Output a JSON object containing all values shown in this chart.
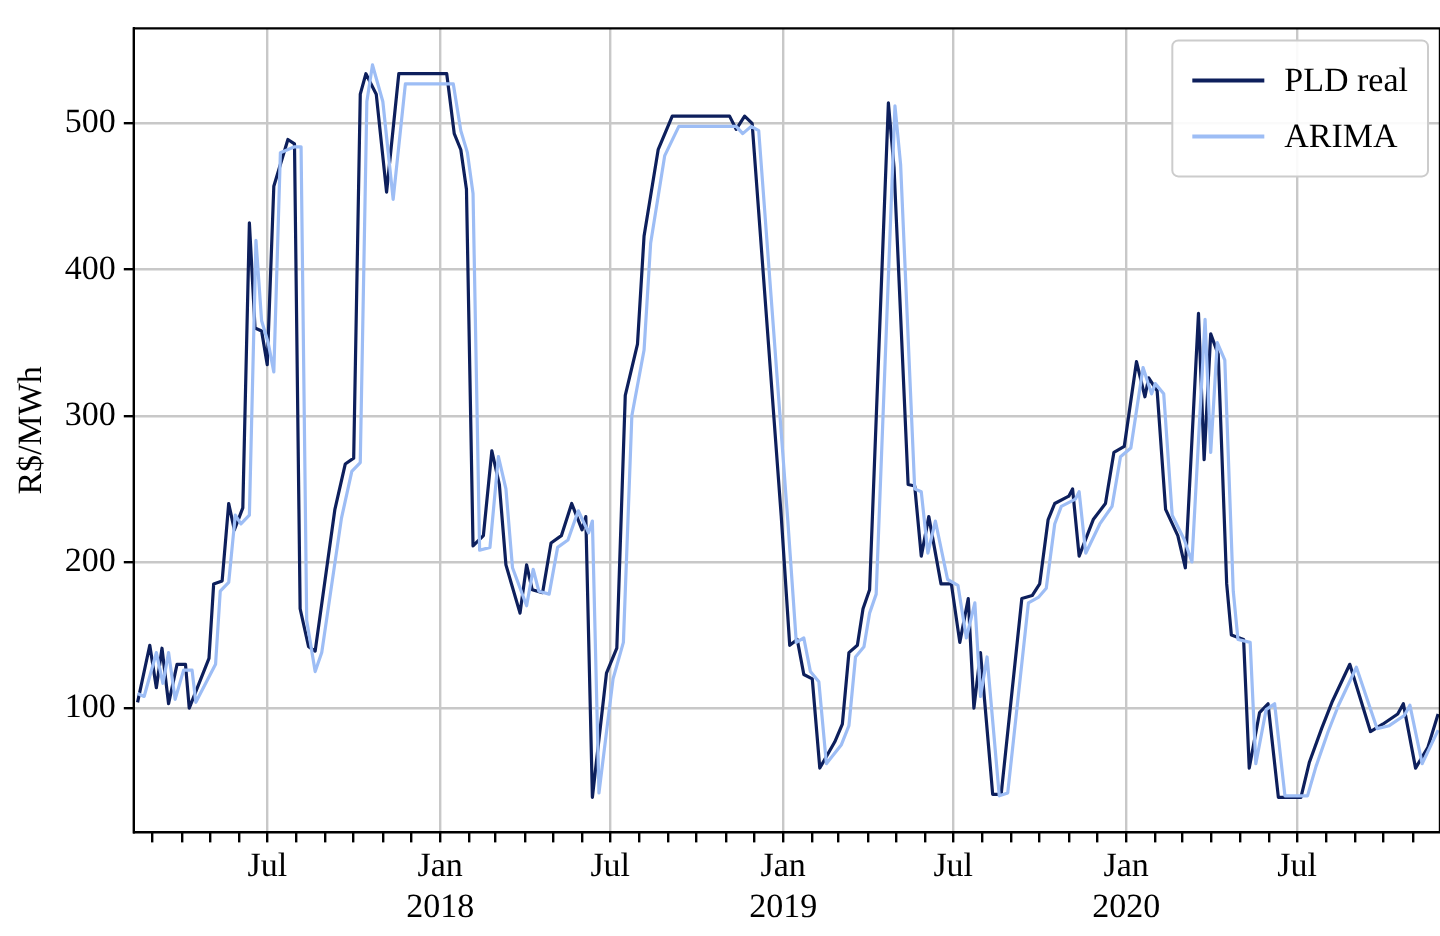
{
  "chart_data": {
    "type": "line",
    "ylabel": "R$/MWh",
    "legend": "top right",
    "grid": true,
    "marker": "none",
    "line_style": "solid",
    "xlim": [
      "2017-02-09",
      "2020-11-30"
    ],
    "ylim": [
      15,
      565
    ],
    "yticks": [
      100,
      200,
      300,
      400,
      500
    ],
    "xticks": [
      {
        "value": "2017-03-01",
        "label": null
      },
      {
        "value": "2017-04-01",
        "label": null
      },
      {
        "value": "2017-05-01",
        "label": null
      },
      {
        "value": "2017-06-01",
        "label": null
      },
      {
        "value": "2017-07-01",
        "label": "Jul"
      },
      {
        "value": "2017-08-01",
        "label": null
      },
      {
        "value": "2017-09-01",
        "label": null
      },
      {
        "value": "2017-10-01",
        "label": null
      },
      {
        "value": "2017-11-01",
        "label": null
      },
      {
        "value": "2017-12-01",
        "label": null
      },
      {
        "value": "2018-01-01",
        "label": "Jan\n2018"
      },
      {
        "value": "2018-02-01",
        "label": null
      },
      {
        "value": "2018-03-01",
        "label": null
      },
      {
        "value": "2018-04-01",
        "label": null
      },
      {
        "value": "2018-05-01",
        "label": null
      },
      {
        "value": "2018-06-01",
        "label": null
      },
      {
        "value": "2018-07-01",
        "label": "Jul"
      },
      {
        "value": "2018-08-01",
        "label": null
      },
      {
        "value": "2018-09-01",
        "label": null
      },
      {
        "value": "2018-10-01",
        "label": null
      },
      {
        "value": "2018-11-01",
        "label": null
      },
      {
        "value": "2018-12-01",
        "label": null
      },
      {
        "value": "2019-01-01",
        "label": "Jan\n2019"
      },
      {
        "value": "2019-02-01",
        "label": null
      },
      {
        "value": "2019-03-01",
        "label": null
      },
      {
        "value": "2019-04-01",
        "label": null
      },
      {
        "value": "2019-05-01",
        "label": null
      },
      {
        "value": "2019-06-01",
        "label": null
      },
      {
        "value": "2019-07-01",
        "label": "Jul"
      },
      {
        "value": "2019-08-01",
        "label": null
      },
      {
        "value": "2019-09-01",
        "label": null
      },
      {
        "value": "2019-10-01",
        "label": null
      },
      {
        "value": "2019-11-01",
        "label": null
      },
      {
        "value": "2019-12-01",
        "label": null
      },
      {
        "value": "2020-01-01",
        "label": "Jan\n2020"
      },
      {
        "value": "2020-02-01",
        "label": null
      },
      {
        "value": "2020-03-01",
        "label": null
      },
      {
        "value": "2020-04-01",
        "label": null
      },
      {
        "value": "2020-05-01",
        "label": null
      },
      {
        "value": "2020-06-01",
        "label": null
      },
      {
        "value": "2020-07-01",
        "label": "Jul"
      },
      {
        "value": "2020-08-01",
        "label": null
      },
      {
        "value": "2020-09-01",
        "label": null
      },
      {
        "value": "2020-10-01",
        "label": null
      },
      {
        "value": "2020-11-01",
        "label": null
      }
    ],
    "series": [
      {
        "name": "PLD real",
        "color": "#0d1f5c",
        "x": [
          "2017-02-13",
          "2017-02-26",
          "2017-03-05",
          "2017-03-11",
          "2017-03-18",
          "2017-03-27",
          "2017-04-05",
          "2017-04-09",
          "2017-04-30",
          "2017-05-05",
          "2017-05-14",
          "2017-05-21",
          "2017-05-27",
          "2017-06-05",
          "2017-06-12",
          "2017-06-18",
          "2017-06-25",
          "2017-07-01",
          "2017-07-08",
          "2017-07-23",
          "2017-07-30",
          "2017-08-05",
          "2017-08-14",
          "2017-08-21",
          "2017-09-11",
          "2017-09-22",
          "2017-10-01",
          "2017-10-08",
          "2017-10-14",
          "2017-10-25",
          "2017-11-05",
          "2017-11-18",
          "2018-01-08",
          "2018-01-16",
          "2018-01-23",
          "2018-01-29",
          "2018-02-05",
          "2018-02-16",
          "2018-02-25",
          "2018-03-05",
          "2018-03-12",
          "2018-03-27",
          "2018-04-03",
          "2018-04-09",
          "2018-04-20",
          "2018-04-29",
          "2018-05-10",
          "2018-05-21",
          "2018-06-01",
          "2018-06-05",
          "2018-06-12",
          "2018-06-27",
          "2018-07-08",
          "2018-07-17",
          "2018-07-30",
          "2018-08-06",
          "2018-08-21",
          "2018-09-05",
          "2018-11-05",
          "2018-11-12",
          "2018-11-21",
          "2018-11-29",
          "2018-12-30",
          "2019-01-08",
          "2019-01-16",
          "2019-01-23",
          "2019-02-01",
          "2019-02-09",
          "2019-02-25",
          "2019-03-05",
          "2019-03-12",
          "2019-03-21",
          "2019-03-27",
          "2019-04-03",
          "2019-04-23",
          "2019-04-29",
          "2019-05-14",
          "2019-05-21",
          "2019-05-28",
          "2019-06-05",
          "2019-06-18",
          "2019-06-29",
          "2019-07-08",
          "2019-07-17",
          "2019-07-23",
          "2019-07-30",
          "2019-08-12",
          "2019-08-21",
          "2019-09-12",
          "2019-09-23",
          "2019-10-01",
          "2019-10-10",
          "2019-10-17",
          "2019-11-01",
          "2019-11-05",
          "2019-11-12",
          "2019-11-27",
          "2019-12-10",
          "2019-12-19",
          "2019-12-30",
          "2020-01-12",
          "2020-01-21",
          "2020-01-25",
          "2020-02-03",
          "2020-02-12",
          "2020-02-25",
          "2020-03-04",
          "2020-03-18",
          "2020-03-24",
          "2020-03-31",
          "2020-04-08",
          "2020-04-17",
          "2020-04-22",
          "2020-05-05",
          "2020-05-11",
          "2020-05-22",
          "2020-05-31",
          "2020-06-11",
          "2020-07-05",
          "2020-07-14",
          "2020-07-27",
          "2020-08-07",
          "2020-08-26",
          "2020-09-17",
          "2020-09-30",
          "2020-10-16",
          "2020-10-22",
          "2020-11-04",
          "2020-11-17",
          "2020-11-28"
        ],
        "values": [
          104,
          143,
          114,
          141,
          103,
          130,
          130,
          100,
          134,
          185,
          187,
          240,
          222,
          237,
          432,
          360,
          358,
          335,
          457,
          489,
          486,
          168,
          142,
          139,
          236,
          267,
          271,
          520,
          534,
          520,
          453,
          534,
          534,
          493,
          482,
          455,
          211,
          218,
          276,
          253,
          198,
          165,
          198,
          181,
          179,
          213,
          218,
          240,
          222,
          231,
          39,
          124,
          141,
          314,
          349,
          423,
          482,
          505,
          505,
          496,
          505,
          500,
          231,
          143,
          147,
          123,
          120,
          59,
          77,
          89,
          138,
          143,
          168,
          181,
          514,
          470,
          253,
          252,
          204,
          231,
          185,
          185,
          145,
          175,
          100,
          138,
          41,
          41,
          175,
          177,
          185,
          229,
          240,
          245,
          250,
          204,
          229,
          240,
          275,
          279,
          337,
          313,
          326,
          317,
          236,
          218,
          196,
          370,
          270,
          356,
          342,
          185,
          150,
          147,
          59,
          97,
          103,
          39,
          39,
          63,
          86,
          104,
          130,
          84,
          89,
          96,
          103,
          59,
          73,
          96
        ]
      },
      {
        "name": "ARIMA",
        "color": "#9dbdf5",
        "x": [
          "2017-02-13",
          "2017-02-20",
          "2017-03-05",
          "2017-03-12",
          "2017-03-18",
          "2017-03-25",
          "2017-04-03",
          "2017-04-12",
          "2017-04-16",
          "2017-05-07",
          "2017-05-12",
          "2017-05-21",
          "2017-05-28",
          "2017-06-03",
          "2017-06-12",
          "2017-06-19",
          "2017-06-25",
          "2017-07-02",
          "2017-07-08",
          "2017-07-15",
          "2017-07-30",
          "2017-08-06",
          "2017-08-12",
          "2017-08-21",
          "2017-08-28",
          "2017-09-18",
          "2017-09-29",
          "2017-10-08",
          "2017-10-15",
          "2017-10-21",
          "2017-11-01",
          "2017-11-12",
          "2017-11-25",
          "2018-01-15",
          "2018-01-23",
          "2018-01-30",
          "2018-02-05",
          "2018-02-12",
          "2018-02-23",
          "2018-03-04",
          "2018-03-12",
          "2018-03-19",
          "2018-04-03",
          "2018-04-10",
          "2018-04-16",
          "2018-04-27",
          "2018-05-06",
          "2018-05-17",
          "2018-05-28",
          "2018-06-08",
          "2018-06-12",
          "2018-06-19",
          "2018-07-04",
          "2018-07-15",
          "2018-07-24",
          "2018-08-06",
          "2018-08-13",
          "2018-08-28",
          "2018-09-12",
          "2018-11-12",
          "2018-11-19",
          "2018-11-28",
          "2018-12-06",
          "2019-01-06",
          "2019-01-15",
          "2019-01-23",
          "2019-01-30",
          "2019-02-08",
          "2019-02-16",
          "2019-03-04",
          "2019-03-12",
          "2019-03-19",
          "2019-03-28",
          "2019-04-03",
          "2019-04-10",
          "2019-04-30",
          "2019-05-06",
          "2019-05-21",
          "2019-05-28",
          "2019-06-04",
          "2019-06-12",
          "2019-06-25",
          "2019-07-06",
          "2019-07-15",
          "2019-07-24",
          "2019-07-30",
          "2019-08-06",
          "2019-08-19",
          "2019-08-28",
          "2019-09-19",
          "2019-09-30",
          "2019-10-08",
          "2019-10-17",
          "2019-10-24",
          "2019-11-08",
          "2019-11-12",
          "2019-11-19",
          "2019-12-04",
          "2019-12-17",
          "2019-12-26",
          "2020-01-06",
          "2020-01-19",
          "2020-01-28",
          "2020-02-01",
          "2020-02-10",
          "2020-02-19",
          "2020-03-03",
          "2020-03-11",
          "2020-03-25",
          "2020-03-31",
          "2020-04-07",
          "2020-04-15",
          "2020-04-24",
          "2020-04-29",
          "2020-05-12",
          "2020-05-18",
          "2020-05-29",
          "2020-06-07",
          "2020-06-18",
          "2020-07-12",
          "2020-07-21",
          "2020-08-03",
          "2020-08-14",
          "2020-09-02",
          "2020-09-24",
          "2020-10-07",
          "2020-10-23",
          "2020-10-29",
          "2020-11-11",
          "2020-11-28"
        ],
        "values": [
          110,
          108,
          138,
          117,
          138,
          106,
          126,
          126,
          104,
          130,
          180,
          186,
          232,
          226,
          232,
          420,
          365,
          350,
          330,
          480,
          484,
          484,
          160,
          125,
          138,
          230,
          262,
          268,
          515,
          540,
          515,
          448,
          527,
          527,
          495,
          480,
          452,
          208,
          210,
          272,
          250,
          196,
          170,
          195,
          180,
          178,
          210,
          215,
          235,
          220,
          228,
          42,
          120,
          145,
          300,
          345,
          418,
          478,
          498,
          498,
          493,
          498,
          495,
          228,
          145,
          148,
          125,
          118,
          62,
          75,
          88,
          135,
          142,
          165,
          178,
          512,
          472,
          250,
          248,
          206,
          228,
          188,
          184,
          148,
          172,
          108,
          135,
          40,
          42,
          172,
          176,
          182,
          226,
          238,
          243,
          248,
          206,
          226,
          238,
          272,
          278,
          333,
          315,
          322,
          315,
          232,
          215,
          200,
          366,
          275,
          350,
          338,
          180,
          147,
          145,
          62,
          99,
          103,
          40,
          40,
          60,
          84,
          102,
          128,
          86,
          88,
          95,
          102,
          62,
          85
        ]
      }
    ]
  }
}
